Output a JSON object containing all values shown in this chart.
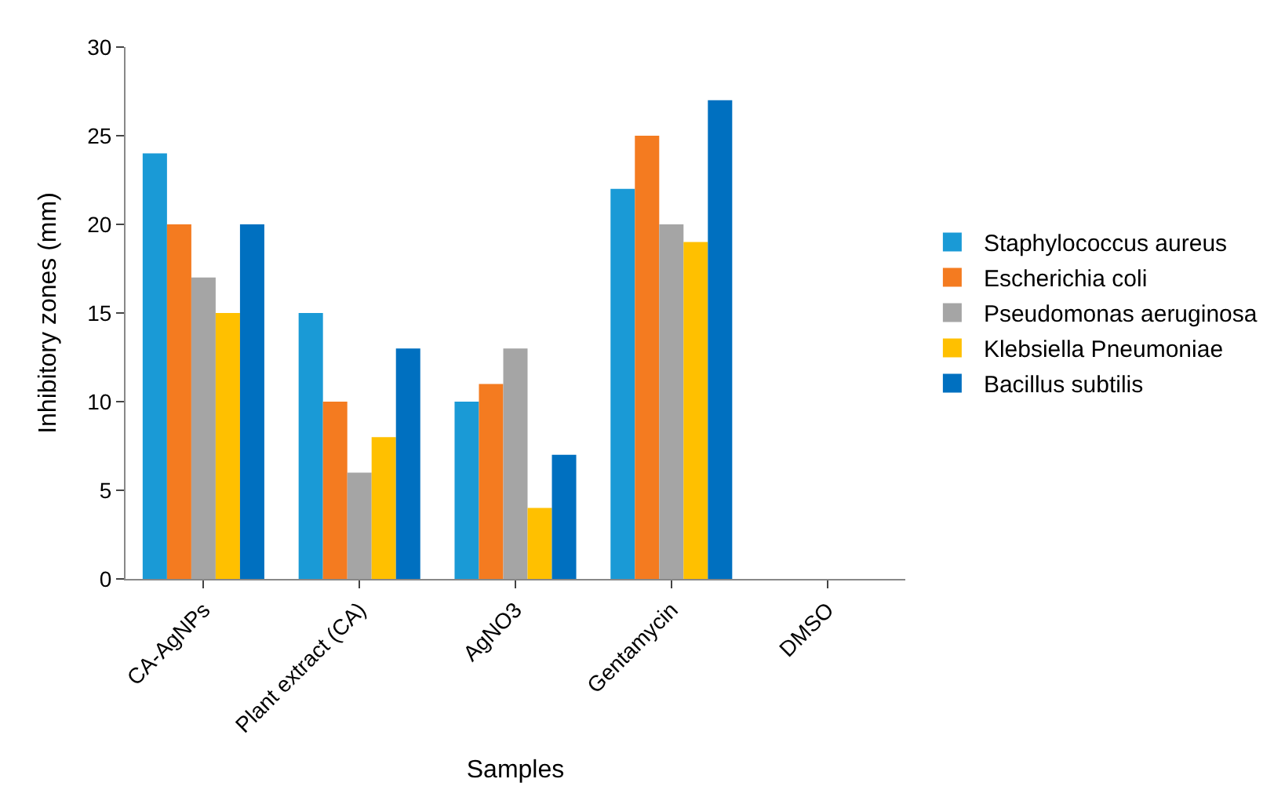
{
  "chart_data": {
    "type": "bar",
    "xlabel": "Samples",
    "ylabel": "Inhibitory zones (mm)",
    "categories": [
      "CA-AgNPs",
      "Plant extract (CA)",
      "AgNO3",
      "Gentamycin",
      "DMSO"
    ],
    "series": [
      {
        "name": "Staphylococcus aureus",
        "color": "#1a9ad6",
        "values": [
          24,
          15,
          10,
          22,
          0
        ]
      },
      {
        "name": "Escherichia coli",
        "color": "#f47b20",
        "values": [
          20,
          10,
          11,
          25,
          0
        ]
      },
      {
        "name": "Pseudomonas aeruginosa",
        "color": "#a5a5a5",
        "values": [
          17,
          6,
          13,
          20,
          0
        ]
      },
      {
        "name": "Klebsiella Pneumoniae",
        "color": "#ffc000",
        "values": [
          15,
          8,
          4,
          19,
          0
        ]
      },
      {
        "name": "Bacillus subtilis",
        "color": "#0070c0",
        "values": [
          20,
          13,
          7,
          27,
          0
        ]
      }
    ],
    "ylim": [
      0,
      30
    ],
    "yticks": [
      0,
      5,
      10,
      15,
      20,
      25,
      30
    ],
    "legend": "right"
  }
}
